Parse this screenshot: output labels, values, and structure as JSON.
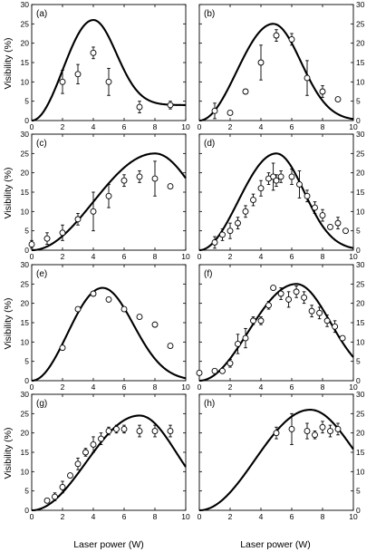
{
  "chart_data": {
    "type": "scatter",
    "xlabel": "Laser power (W)",
    "ylabel": "Visibility (%)",
    "xlim": [
      0,
      10
    ],
    "ylim": [
      0,
      30
    ],
    "xticks": [
      "0",
      "2",
      "4",
      "6",
      "8",
      "10"
    ],
    "yticks": [
      "0",
      "5",
      "10",
      "15",
      "20",
      "25",
      "30"
    ],
    "grid": false,
    "panels": [
      {
        "label": "(a)",
        "curve": {
          "peak_x": 4.0,
          "peak_y": 26,
          "width": 1.5,
          "tail": 4
        },
        "points": [
          {
            "x": 2.0,
            "y": 10.0,
            "err": 3.0
          },
          {
            "x": 3.0,
            "y": 12.0,
            "err": 2.5
          },
          {
            "x": 4.0,
            "y": 17.5,
            "err": 1.5
          },
          {
            "x": 5.0,
            "y": 10.0,
            "err": 3.5
          },
          {
            "x": 7.0,
            "y": 3.5,
            "err": 1.5
          },
          {
            "x": 9.0,
            "y": 4.0,
            "err": 1.0
          }
        ]
      },
      {
        "label": "(b)",
        "curve": {
          "peak_x": 4.8,
          "peak_y": 25,
          "width": 1.8,
          "tail": 0
        },
        "points": [
          {
            "x": 1.0,
            "y": 2.5,
            "err": 2.0
          },
          {
            "x": 2.0,
            "y": 2.0,
            "err": 0.5
          },
          {
            "x": 3.0,
            "y": 7.5,
            "err": 0.5
          },
          {
            "x": 4.0,
            "y": 15.0,
            "err": 4.5
          },
          {
            "x": 5.0,
            "y": 22.0,
            "err": 1.5
          },
          {
            "x": 6.0,
            "y": 21.0,
            "err": 1.5
          },
          {
            "x": 7.0,
            "y": 11.0,
            "err": 4.5
          },
          {
            "x": 8.0,
            "y": 7.5,
            "err": 1.5
          },
          {
            "x": 9.0,
            "y": 5.5,
            "err": 0.5
          }
        ]
      },
      {
        "label": "(c)",
        "curve": {
          "peak_x": 8.0,
          "peak_y": 25,
          "width": 2.6,
          "tail": 0
        },
        "points": [
          {
            "x": 0.0,
            "y": 1.5,
            "err": 1.0
          },
          {
            "x": 1.0,
            "y": 3.0,
            "err": 1.5
          },
          {
            "x": 2.0,
            "y": 4.5,
            "err": 2.0
          },
          {
            "x": 3.0,
            "y": 8.0,
            "err": 1.5
          },
          {
            "x": 4.0,
            "y": 10.0,
            "err": 5.0
          },
          {
            "x": 5.0,
            "y": 14.0,
            "err": 3.0
          },
          {
            "x": 6.0,
            "y": 18.0,
            "err": 1.5
          },
          {
            "x": 7.0,
            "y": 19.0,
            "err": 1.5
          },
          {
            "x": 8.0,
            "y": 18.5,
            "err": 4.5
          },
          {
            "x": 9.0,
            "y": 16.5,
            "err": 0.5
          }
        ]
      },
      {
        "label": "(d)",
        "curve": {
          "peak_x": 5.0,
          "peak_y": 25,
          "width": 1.8,
          "tail": 0
        },
        "points": [
          {
            "x": 1.0,
            "y": 2.0,
            "err": 1.5
          },
          {
            "x": 1.5,
            "y": 4.0,
            "err": 1.5
          },
          {
            "x": 2.0,
            "y": 5.0,
            "err": 2.0
          },
          {
            "x": 2.5,
            "y": 7.0,
            "err": 1.5
          },
          {
            "x": 3.0,
            "y": 10.0,
            "err": 1.5
          },
          {
            "x": 3.5,
            "y": 13.0,
            "err": 1.5
          },
          {
            "x": 4.0,
            "y": 16.0,
            "err": 2.0
          },
          {
            "x": 4.5,
            "y": 18.5,
            "err": 1.5
          },
          {
            "x": 4.8,
            "y": 19.0,
            "err": 3.5
          },
          {
            "x": 5.0,
            "y": 18.0,
            "err": 1.5
          },
          {
            "x": 5.3,
            "y": 19.0,
            "err": 1.5
          },
          {
            "x": 6.0,
            "y": 19.0,
            "err": 2.0
          },
          {
            "x": 6.5,
            "y": 17.0,
            "err": 3.5
          },
          {
            "x": 7.0,
            "y": 14.0,
            "err": 1.5
          },
          {
            "x": 7.5,
            "y": 11.0,
            "err": 1.5
          },
          {
            "x": 8.0,
            "y": 9.0,
            "err": 1.5
          },
          {
            "x": 8.5,
            "y": 6.0,
            "err": 0.5
          },
          {
            "x": 9.0,
            "y": 7.0,
            "err": 1.5
          },
          {
            "x": 9.5,
            "y": 5.0,
            "err": 0.5
          }
        ]
      },
      {
        "label": "(e)",
        "curve": {
          "peak_x": 4.6,
          "peak_y": 24,
          "width": 2.0,
          "tail": 0
        },
        "points": [
          {
            "x": 2.0,
            "y": 8.5,
            "err": 0
          },
          {
            "x": 3.0,
            "y": 18.5,
            "err": 0
          },
          {
            "x": 4.0,
            "y": 22.5,
            "err": 0
          },
          {
            "x": 5.0,
            "y": 21.0,
            "err": 0
          },
          {
            "x": 6.0,
            "y": 18.5,
            "err": 0
          },
          {
            "x": 7.0,
            "y": 16.5,
            "err": 0
          },
          {
            "x": 8.0,
            "y": 14.5,
            "err": 0
          },
          {
            "x": 9.0,
            "y": 9.0,
            "err": 0
          }
        ]
      },
      {
        "label": "(f)",
        "curve": {
          "peak_x": 6.3,
          "peak_y": 25,
          "width": 2.2,
          "tail": 0
        },
        "points": [
          {
            "x": 0.0,
            "y": 2.0,
            "err": 0.5
          },
          {
            "x": 1.0,
            "y": 2.5,
            "err": 0.5
          },
          {
            "x": 1.5,
            "y": 2.5,
            "err": 0.5
          },
          {
            "x": 2.0,
            "y": 4.5,
            "err": 1.0
          },
          {
            "x": 2.5,
            "y": 9.5,
            "err": 2.5
          },
          {
            "x": 3.0,
            "y": 11.0,
            "err": 2.5
          },
          {
            "x": 3.5,
            "y": 15.5,
            "err": 1.0
          },
          {
            "x": 4.0,
            "y": 15.5,
            "err": 1.0
          },
          {
            "x": 4.5,
            "y": 19.5,
            "err": 1.0
          },
          {
            "x": 4.8,
            "y": 24.0,
            "err": 0.5
          },
          {
            "x": 5.3,
            "y": 22.5,
            "err": 1.5
          },
          {
            "x": 5.8,
            "y": 21.0,
            "err": 2.0
          },
          {
            "x": 6.3,
            "y": 23.0,
            "err": 1.5
          },
          {
            "x": 6.8,
            "y": 21.5,
            "err": 1.5
          },
          {
            "x": 7.3,
            "y": 18.0,
            "err": 1.5
          },
          {
            "x": 7.8,
            "y": 17.5,
            "err": 1.5
          },
          {
            "x": 8.3,
            "y": 15.5,
            "err": 1.5
          },
          {
            "x": 8.8,
            "y": 14.0,
            "err": 1.5
          },
          {
            "x": 9.3,
            "y": 11.0,
            "err": 0.5
          }
        ]
      },
      {
        "label": "(g)",
        "curve": {
          "peak_x": 7.0,
          "peak_y": 24.5,
          "width": 2.4,
          "tail": 0
        },
        "points": [
          {
            "x": 1.0,
            "y": 2.5,
            "err": 0.5
          },
          {
            "x": 1.5,
            "y": 3.5,
            "err": 1.0
          },
          {
            "x": 2.0,
            "y": 6.0,
            "err": 1.5
          },
          {
            "x": 2.5,
            "y": 9.0,
            "err": 0.5
          },
          {
            "x": 3.0,
            "y": 12.0,
            "err": 1.5
          },
          {
            "x": 3.5,
            "y": 15.0,
            "err": 1.0
          },
          {
            "x": 4.0,
            "y": 17.0,
            "err": 2.0
          },
          {
            "x": 4.5,
            "y": 18.5,
            "err": 1.5
          },
          {
            "x": 5.0,
            "y": 20.5,
            "err": 1.0
          },
          {
            "x": 5.5,
            "y": 21.0,
            "err": 1.0
          },
          {
            "x": 6.0,
            "y": 21.0,
            "err": 1.0
          },
          {
            "x": 7.0,
            "y": 20.5,
            "err": 1.5
          },
          {
            "x": 8.0,
            "y": 20.5,
            "err": 1.5
          },
          {
            "x": 9.0,
            "y": 20.5,
            "err": 1.5
          }
        ]
      },
      {
        "label": "(h)",
        "curve": {
          "peak_x": 7.2,
          "peak_y": 26,
          "width": 2.8,
          "tail": 0
        },
        "points": [
          {
            "x": 5.0,
            "y": 20.0,
            "err": 1.5
          },
          {
            "x": 6.0,
            "y": 21.0,
            "err": 4.0
          },
          {
            "x": 7.0,
            "y": 20.5,
            "err": 2.0
          },
          {
            "x": 7.5,
            "y": 19.5,
            "err": 1.0
          },
          {
            "x": 8.0,
            "y": 21.5,
            "err": 1.5
          },
          {
            "x": 8.5,
            "y": 20.5,
            "err": 1.5
          },
          {
            "x": 9.0,
            "y": 21.0,
            "err": 1.5
          }
        ]
      }
    ]
  }
}
